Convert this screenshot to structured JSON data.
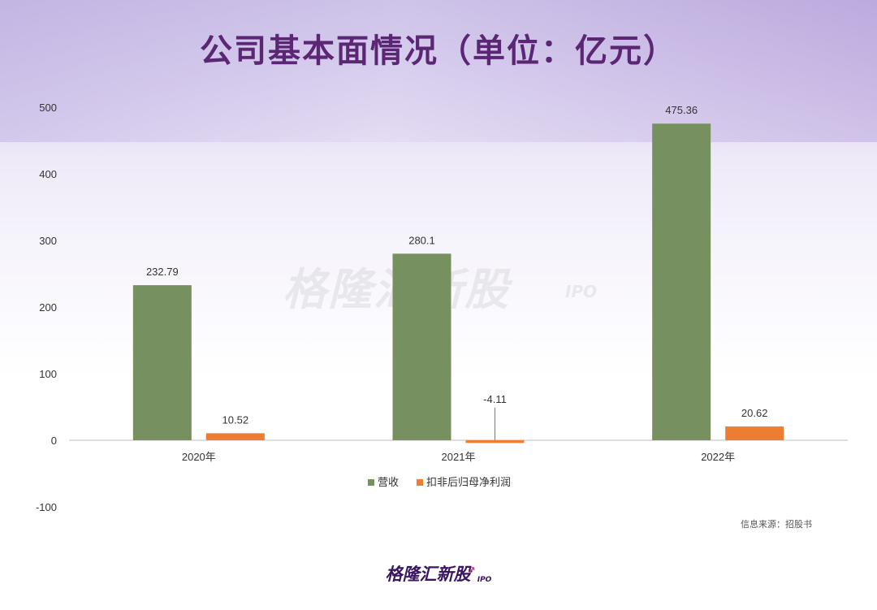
{
  "title": "公司基本面情况（单位：亿元）",
  "watermark": {
    "brand": "格隆汇新股",
    "ipo": "IPO"
  },
  "source": "信息来源：招股书",
  "footer_logo": {
    "brand": "格隆汇新股",
    "ipo": "IPO"
  },
  "chart_data": {
    "type": "bar",
    "categories": [
      "2020年",
      "2021年",
      "2022年"
    ],
    "series": [
      {
        "name": "营收",
        "values": [
          232.79,
          280.1,
          475.36
        ],
        "labels": [
          "232.79",
          "280.1",
          "475.36"
        ],
        "color": "#76905f"
      },
      {
        "name": "扣非后归母净利润",
        "values": [
          10.52,
          -4.11,
          20.62
        ],
        "labels": [
          "10.52",
          "-4.11",
          "20.62"
        ],
        "color": "#ed7d31"
      }
    ],
    "ylim": [
      -100,
      500
    ],
    "yticks": [
      500,
      400,
      300,
      200,
      100,
      0,
      -100
    ],
    "xlabel": "",
    "ylabel": "",
    "grid": false,
    "legend": "bottom"
  }
}
